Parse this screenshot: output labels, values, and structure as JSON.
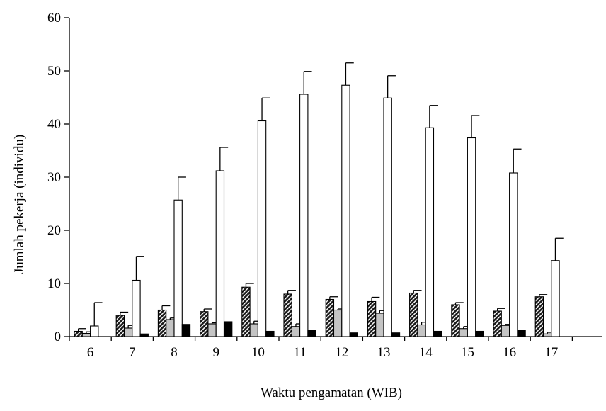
{
  "chart_data": {
    "type": "bar",
    "xlabel": "Waktu pengamatan (WIB)",
    "ylabel": "Jumlah pekerja (individu)",
    "ylim": [
      0,
      60
    ],
    "yticks": [
      "0",
      "10",
      "20",
      "30",
      "40",
      "50",
      "60"
    ],
    "categories": [
      "6",
      "7",
      "8",
      "9",
      "10",
      "11",
      "12",
      "13",
      "14",
      "15",
      "16",
      "17"
    ],
    "grid": false,
    "legend": "none",
    "series": [
      {
        "pattern": "diagonal-hatch",
        "fill": "#3a3a3a",
        "values": [
          1.0,
          4.0,
          5.0,
          4.7,
          9.3,
          8.0,
          7.0,
          6.6,
          8.2,
          6.0,
          4.8,
          7.5
        ],
        "errors": [
          0.5,
          0.6,
          0.8,
          0.5,
          0.7,
          0.7,
          0.5,
          0.8,
          0.5,
          0.4,
          0.5,
          0.4
        ]
      },
      {
        "pattern": "solid",
        "fill": "#c4c4c4",
        "values": [
          0.6,
          1.6,
          3.2,
          2.4,
          2.4,
          1.9,
          5.0,
          4.4,
          2.2,
          1.5,
          2.1,
          0.5
        ],
        "errors": [
          0.3,
          0.5,
          0.3,
          0.2,
          0.5,
          0.5,
          0.2,
          0.5,
          0.5,
          0.4,
          0.2,
          0.3
        ]
      },
      {
        "pattern": "solid",
        "fill": "#ffffff",
        "values": [
          2.0,
          10.6,
          25.7,
          31.2,
          40.6,
          45.6,
          47.3,
          44.9,
          39.3,
          37.4,
          30.8,
          14.3
        ],
        "errors": [
          4.4,
          4.5,
          4.3,
          4.4,
          4.3,
          4.3,
          4.2,
          4.2,
          4.2,
          4.2,
          4.5,
          4.2
        ]
      },
      {
        "pattern": "solid",
        "fill": "#000000",
        "values": [
          0,
          0.5,
          2.3,
          2.8,
          1.0,
          1.2,
          0.7,
          0.7,
          1.0,
          1.0,
          1.2,
          0
        ],
        "errors": [
          0,
          0,
          0,
          0,
          0,
          0,
          0,
          0,
          0,
          0,
          0,
          0
        ]
      }
    ]
  }
}
